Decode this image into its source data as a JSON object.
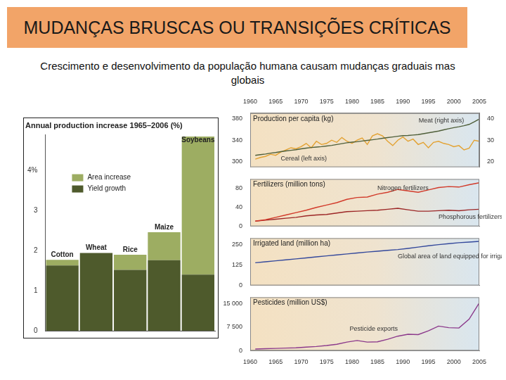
{
  "title": "MUDANÇAS BRUSCAS OU TRANSIÇÕES CRÍTICAS",
  "subtitle": "Crescimento e desenvolvimento da população humana causam mudanças graduais mas globais",
  "chart_data": [
    {
      "type": "bar",
      "title": "Annual production increase 1965–2006 (%)",
      "categories": [
        "Cotton",
        "Wheat",
        "Rice",
        "Maize",
        "Soybeans"
      ],
      "series": [
        {
          "name": "Area increase",
          "color": "#9dad62",
          "values": [
            0.14,
            0,
            0.38,
            0.7,
            3.45
          ]
        },
        {
          "name": "Yield growth",
          "color": "#4e5a2c",
          "values": [
            1.63,
            1.94,
            1.52,
            1.76,
            1.4
          ]
        }
      ],
      "stacked": true,
      "ylim": [
        0,
        4.9
      ],
      "yticks": [
        0,
        1,
        2,
        3,
        {
          "value": 4,
          "label": "4%"
        }
      ],
      "grid": false,
      "legend": "upper left",
      "tick_labels": "y"
    },
    {
      "type": "line",
      "title": "Production per capita (kg)",
      "x": [
        1961,
        1962,
        1963,
        1964,
        1965,
        1966,
        1967,
        1968,
        1969,
        1970,
        1971,
        1972,
        1973,
        1974,
        1975,
        1976,
        1977,
        1978,
        1979,
        1980,
        1981,
        1982,
        1983,
        1984,
        1985,
        1986,
        1987,
        1988,
        1989,
        1990,
        1991,
        1992,
        1993,
        1994,
        1995,
        1996,
        1997,
        1998,
        1999,
        2000,
        2001,
        2002,
        2003,
        2004,
        2005
      ],
      "series": [
        {
          "name": "Meat (right axis)",
          "color": "#4f5f3a",
          "axis": "y2",
          "values": [
            23.0,
            23.3,
            23.6,
            24.0,
            24.3,
            24.7,
            25.0,
            25.3,
            25.6,
            26.0,
            26.3,
            26.6,
            26.8,
            27.0,
            27.3,
            27.6,
            28.0,
            28.4,
            28.8,
            29.1,
            29.3,
            29.6,
            29.9,
            30.2,
            30.5,
            30.9,
            31.2,
            31.5,
            31.8,
            32.1,
            32.2,
            32.4,
            32.6,
            33.0,
            33.4,
            33.8,
            34.2,
            34.8,
            35.3,
            35.8,
            36.2,
            36.7,
            37.3,
            38.5,
            39.8
          ]
        },
        {
          "name": "Cereal (left axis)",
          "color": "#e3a232",
          "values": [
            305,
            308,
            310,
            314,
            312,
            318,
            322,
            326,
            324,
            328,
            334,
            326,
            338,
            332,
            334,
            340,
            336,
            345,
            338,
            334,
            340,
            344,
            332,
            348,
            352,
            348,
            338,
            330,
            340,
            346,
            338,
            342,
            332,
            336,
            326,
            336,
            338,
            334,
            332,
            328,
            330,
            322,
            325,
            340,
            338
          ]
        }
      ],
      "xlim": [
        1960,
        2005
      ],
      "xticks": [
        1960,
        1965,
        1970,
        1975,
        1980,
        1985,
        1990,
        1995,
        2000,
        2005
      ],
      "ylim": [
        290,
        390
      ],
      "yticks": [
        300,
        340,
        380
      ],
      "y2lim": [
        17.5,
        42.5
      ],
      "y2ticks": [
        20,
        30,
        40
      ],
      "grid": false
    },
    {
      "type": "line",
      "title": "Fertilizers (million tons)",
      "x": [
        1961,
        1963,
        1965,
        1967,
        1969,
        1971,
        1973,
        1975,
        1977,
        1979,
        1981,
        1983,
        1985,
        1987,
        1989,
        1991,
        1993,
        1995,
        1997,
        1999,
        2001,
        2003,
        2005
      ],
      "series": [
        {
          "name": "Nitrogen fertilizers",
          "color": "#d23a2a",
          "values": [
            11,
            14,
            19,
            24,
            29,
            34,
            40,
            45,
            50,
            57,
            61,
            62,
            68,
            72,
            78,
            75,
            72,
            77,
            82,
            84,
            83,
            88,
            92
          ]
        },
        {
          "name": "Phosphorous fertilizers",
          "color": "#9c2626",
          "values": [
            11,
            13,
            15,
            17,
            19,
            22,
            24,
            25,
            28,
            31,
            32,
            33,
            34,
            36,
            38,
            35,
            32,
            32,
            33,
            34,
            33,
            35,
            36
          ]
        }
      ],
      "xlim": [
        1960,
        2005
      ],
      "xticks": [
        1960,
        1965,
        1970,
        1975,
        1980,
        1985,
        1990,
        1995,
        2000,
        2005
      ],
      "ylim": [
        0,
        100
      ],
      "yticks": [
        0,
        40,
        80
      ],
      "grid": false,
      "tick_labels": "y"
    },
    {
      "type": "line",
      "title": "Irrigated land (million ha)",
      "x": [
        1961,
        1963,
        1965,
        1967,
        1969,
        1971,
        1973,
        1975,
        1977,
        1979,
        1981,
        1983,
        1985,
        1987,
        1989,
        1991,
        1993,
        1995,
        1997,
        1999,
        2001,
        2003,
        2005
      ],
      "series": [
        {
          "name": "Global area of land equipped for irrigation",
          "color": "#34499c",
          "values": [
            139,
            145,
            151,
            157,
            163,
            169,
            175,
            181,
            187,
            193,
            199,
            205,
            210,
            215,
            220,
            227,
            235,
            243,
            250,
            256,
            262,
            266,
            270
          ]
        }
      ],
      "xlim": [
        1960,
        2005
      ],
      "xticks": [
        1960,
        1965,
        1970,
        1975,
        1980,
        1985,
        1990,
        1995,
        2000,
        2005
      ],
      "ylim": [
        0,
        290
      ],
      "yticks": [
        0,
        125,
        250
      ],
      "grid": false,
      "tick_labels": "y"
    },
    {
      "type": "line",
      "title": "Pesticides (million US$)",
      "x": [
        1961,
        1963,
        1965,
        1967,
        1969,
        1971,
        1973,
        1975,
        1977,
        1979,
        1981,
        1983,
        1985,
        1987,
        1989,
        1991,
        1993,
        1995,
        1997,
        1999,
        2001,
        2003,
        2005
      ],
      "series": [
        {
          "name": "Pesticide exports",
          "color": "#8c3a8c",
          "values": [
            500,
            600,
            700,
            800,
            900,
            1100,
            1300,
            1600,
            2000,
            2700,
            3200,
            2700,
            2800,
            3600,
            4600,
            5200,
            5100,
            6300,
            7800,
            7300,
            7200,
            10000,
            15200
          ]
        }
      ],
      "xlim": [
        1960,
        2005
      ],
      "xticks": [
        1960,
        1965,
        1970,
        1975,
        1980,
        1985,
        1990,
        1995,
        2000,
        2005
      ],
      "ylim": [
        0,
        17000
      ],
      "yticks": [
        0,
        {
          "value": 7500,
          "label": "7 500"
        },
        {
          "value": 15000,
          "label": "15 000"
        }
      ],
      "grid": false
    }
  ]
}
